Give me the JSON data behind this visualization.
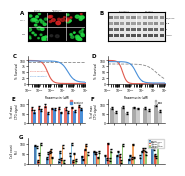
{
  "background_color": "#ffffff",
  "panelC": {
    "xlabel": "Rapamycin (μM)",
    "ylabel": "% Survival",
    "curve_colors": [
      "#e05a4e",
      "#4a90d9",
      "#888888"
    ],
    "curve_styles": [
      "solid",
      "solid",
      "dashed"
    ],
    "curve_labels": [
      "CAL51-sensitive",
      "CAL51-resistant",
      ""
    ],
    "ylim": [
      0,
      120
    ],
    "yticks": [
      0,
      25,
      50,
      75,
      100
    ]
  },
  "panelD": {
    "xlabel": "Rapamycin (μM)",
    "ylabel": "% Survival",
    "curve_colors": [
      "#e05a4e",
      "#888888",
      "#4a90d9"
    ],
    "curve_styles": [
      "solid",
      "dashed",
      "solid"
    ],
    "ylim": [
      0,
      120
    ],
    "yticks": [
      0,
      25,
      50,
      75,
      100
    ]
  },
  "panelE": {
    "ylabel": "% of max\nCTG signal",
    "bar_color1": "#e8736a",
    "bar_color2": "#4a90d9",
    "n_cats": 8,
    "ylim": [
      0,
      130
    ],
    "yticks": [
      0,
      50,
      100
    ]
  },
  "panelF": {
    "ylabel": "% of max\nCTG signal",
    "bar_color1": "#aaaaaa",
    "bar_color2": "#cccccc",
    "n_cats": 5,
    "ylim": [
      0,
      130
    ],
    "yticks": [
      0,
      50,
      100
    ]
  },
  "panelG": {
    "ylabel": "Cell count\n(%)",
    "legend_colors": [
      "#4a7fb5",
      "#89c4e1",
      "#e05a4e",
      "#f4a460",
      "#90c978"
    ],
    "legend_labels": [
      "DMSO",
      "Rapamycin",
      "Torin1",
      "Trametinib",
      "Combo"
    ],
    "n_groups": 11,
    "n_conds": 5,
    "ylim": [
      0,
      130
    ],
    "yticks": [
      0,
      50,
      100
    ]
  }
}
